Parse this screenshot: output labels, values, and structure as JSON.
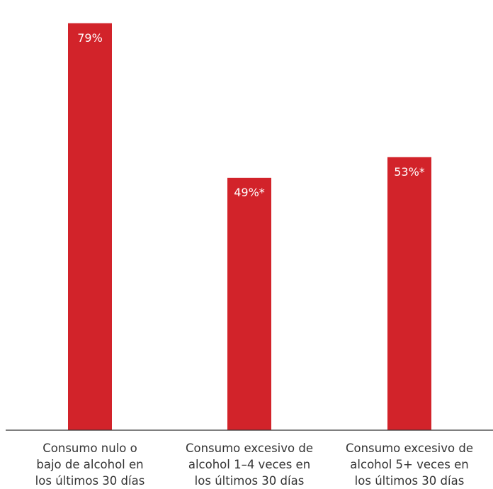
{
  "chart_data": {
    "type": "bar",
    "categories": [
      [
        "Consumo nulo o",
        "bajo de alcohol en",
        "los últimos 30 días"
      ],
      [
        "Consumo excesivo de",
        "alcohol 1–4 veces en",
        "los últimos 30 días"
      ],
      [
        "Consumo excesivo de",
        "alcohol 5+ veces en",
        "los últimos 30 días"
      ]
    ],
    "values": [
      79,
      49,
      53
    ],
    "value_labels": [
      "79%",
      "49%*",
      "53%*"
    ],
    "ylim": [
      0,
      82
    ],
    "grid": false,
    "legend": "none",
    "colors": {
      "bar": "#d2232a",
      "bar_label": "#ffffff",
      "axis": "#333333",
      "category_text": "#333333"
    }
  }
}
